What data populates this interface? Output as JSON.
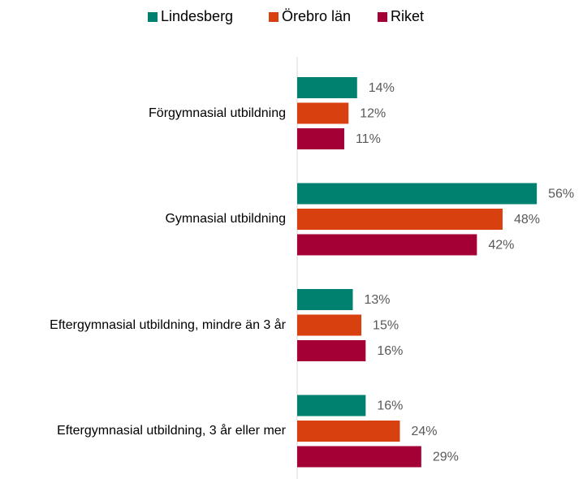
{
  "chart_data": {
    "type": "bar",
    "orientation": "horizontal",
    "categories": [
      "Förgymnasial utbildning",
      "Gymnasial utbildning",
      "Eftergymnasial utbildning, mindre än 3 år",
      "Eftergymnasial utbildning, 3 år eller mer"
    ],
    "series": [
      {
        "name": "Lindesberg",
        "color": "#00806e",
        "values": [
          14,
          56,
          13,
          16
        ],
        "value_labels": [
          "14%",
          "56%",
          "13%",
          "16%"
        ]
      },
      {
        "name": "Örebro län",
        "color": "#d9400f",
        "values": [
          12,
          48,
          15,
          24
        ],
        "value_labels": [
          "12%",
          "48%",
          "15%",
          "24%"
        ]
      },
      {
        "name": "Riket",
        "color": "#a50036",
        "values": [
          11,
          42,
          16,
          29
        ],
        "value_labels": [
          "11%",
          "42%",
          "16%",
          "29%"
        ]
      }
    ],
    "legend": "top"
  }
}
